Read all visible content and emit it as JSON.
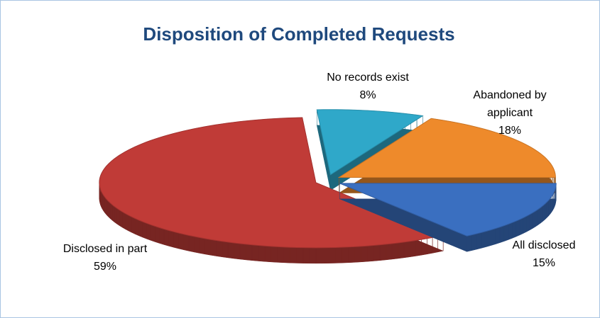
{
  "chart_data": {
    "type": "pie3d",
    "title": "Disposition of Completed Requests",
    "categories": [
      "All disclosed",
      "Disclosed in part",
      "No records exist",
      "Abandoned by applicant"
    ],
    "values": [
      15,
      59,
      8,
      18
    ],
    "value_labels": [
      "15%",
      "59%",
      "8%",
      "18%"
    ],
    "colors": [
      "#3a6fc0",
      "#c03b37",
      "#2fa8c9",
      "#ee8a2b"
    ]
  }
}
